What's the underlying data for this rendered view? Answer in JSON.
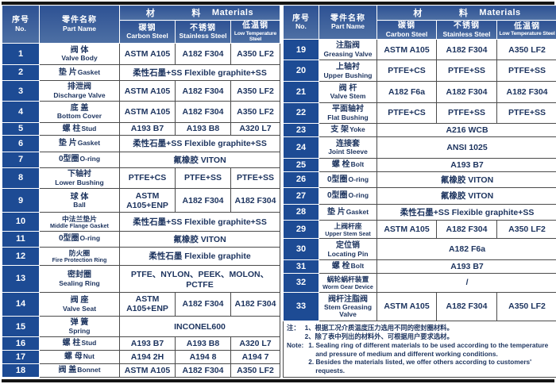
{
  "colors": {
    "header_blue_top": "#2e5294",
    "header_blue_bottom": "#4e70a4",
    "number_cell_blue": "#1d4b94",
    "body_text_navy": "#1c335e",
    "grid_line": "#4a4a4a",
    "frame_black": "#141414"
  },
  "header": {
    "no_zh": "序号",
    "no_en": "No.",
    "part_zh": "零件名称",
    "part_en": "Part Name",
    "materials_zh_1": "材",
    "materials_zh_2": "料",
    "materials_en": "Materials",
    "material_columns": [
      {
        "zh": "碳钢",
        "en": "Carbon Steel"
      },
      {
        "zh": "不锈钢",
        "en": "Stainless Steel"
      },
      {
        "zh": "低温钢",
        "en": "Low Temperature Steel"
      }
    ]
  },
  "left_rows": [
    {
      "no": "1",
      "part_zh": "阀 体",
      "part_en": "Valve Body",
      "layout": "stacked",
      "cells": [
        "ASTM A105",
        "A182 F304",
        "A350 LF2"
      ]
    },
    {
      "no": "2",
      "part_zh": "垫 片",
      "part_en": "Gasket",
      "layout": "inline",
      "span": "柔性石墨+SS  Flexible graphite+SS"
    },
    {
      "no": "3",
      "part_zh": "排泄阀",
      "part_en": "Discharge Valve",
      "layout": "stacked",
      "cells": [
        "ASTM A105",
        "A182 F304",
        "A350 LF2"
      ]
    },
    {
      "no": "4",
      "part_zh": "底 盖",
      "part_en": "Bottom Cover",
      "layout": "stacked",
      "cells": [
        "ASTM A105",
        "A182 F304",
        "A350 LF2"
      ]
    },
    {
      "no": "5",
      "part_zh": "螺 柱",
      "part_en": "Stud",
      "layout": "inline",
      "cells": [
        "A193 B7",
        "A193 B8",
        "A320 L7"
      ]
    },
    {
      "no": "6",
      "part_zh": "垫 片",
      "part_en": "Gasket",
      "layout": "inline",
      "span": "柔性石墨+SS  Flexible graphite+SS"
    },
    {
      "no": "7",
      "part_zh": "0型圈",
      "part_en": "O-ring",
      "layout": "inline",
      "span": "氟橡胶  VITON"
    },
    {
      "no": "8",
      "part_zh": "下轴衬",
      "part_en": "Lower Bushing",
      "layout": "stacked",
      "cells": [
        "PTFE+CS",
        "PTFE+SS",
        "PTFE+SS"
      ]
    },
    {
      "no": "9",
      "part_zh": "球 体",
      "part_en": "Ball",
      "layout": "stacked",
      "cells": [
        "ASTM A105+ENP",
        "A182 F304",
        "A182 F304"
      ]
    },
    {
      "no": "10",
      "part_zh": "中法兰垫片",
      "part_en": "Middle Flange Gasket",
      "layout": "stacked-small",
      "span": "柔性石墨+SS  Flexible graphite+SS"
    },
    {
      "no": "11",
      "part_zh": "0型圈",
      "part_en": "O-ring",
      "layout": "inline",
      "span": "氟橡胶  VITON"
    },
    {
      "no": "12",
      "part_zh": "防火圈",
      "part_en": "Fire Protection Ring",
      "layout": "stacked-small",
      "span": "柔性石墨  Flexible graphite"
    },
    {
      "no": "13",
      "part_zh": "密封圈",
      "part_en": "Sealing Ring",
      "layout": "stacked",
      "span": "PTFE、NYLON、PEEK、MOLON、PCTFE"
    },
    {
      "no": "14",
      "part_zh": "阀 座",
      "part_en": "Valve Seat",
      "layout": "stacked",
      "cells": [
        "ASTM A105+ENP",
        "A182 F304",
        "A182 F304"
      ]
    },
    {
      "no": "15",
      "part_zh": "弹 簧",
      "part_en": "Spring",
      "layout": "stacked",
      "span": "INCONEL600"
    },
    {
      "no": "16",
      "part_zh": "螺 柱",
      "part_en": "Stud",
      "layout": "inline",
      "cells": [
        "A193 B7",
        "A193 B8",
        "A320 L7"
      ]
    },
    {
      "no": "17",
      "part_zh": "螺 母",
      "part_en": "Nut",
      "layout": "inline",
      "cells": [
        "A194 2H",
        "A194 8",
        "A194 7"
      ]
    },
    {
      "no": "18",
      "part_zh": "阀 盖",
      "part_en": "Bonnet",
      "layout": "inline",
      "cells": [
        "ASTM A105",
        "A182 F304",
        "A350 LF2"
      ]
    }
  ],
  "right_rows": [
    {
      "no": "19",
      "part_zh": "注脂阀",
      "part_en": "Greasing Valve",
      "layout": "stacked",
      "cells": [
        "ASTM A105",
        "A182 F304",
        "A350 LF2"
      ]
    },
    {
      "no": "20",
      "part_zh": "上轴衬",
      "part_en": "Upper Bushing",
      "layout": "stacked",
      "cells": [
        "PTFE+CS",
        "PTFE+SS",
        "PTFE+SS"
      ]
    },
    {
      "no": "21",
      "part_zh": "阀 杆",
      "part_en": "Valve Stem",
      "layout": "stacked",
      "cells": [
        "A182 F6a",
        "A182 F304",
        "A182 F304"
      ]
    },
    {
      "no": "22",
      "part_zh": "平面轴衬",
      "part_en": "Flat Bushing",
      "layout": "stacked",
      "cells": [
        "PTFE+CS",
        "PTFE+SS",
        "PTFE+SS"
      ]
    },
    {
      "no": "23",
      "part_zh": "支 架",
      "part_en": "Yoke",
      "layout": "inline",
      "span": "A216 WCB"
    },
    {
      "no": "24",
      "part_zh": "连接套",
      "part_en": "Joint Sleeve",
      "layout": "stacked",
      "span": "ANSI 1025"
    },
    {
      "no": "25",
      "part_zh": "螺 栓",
      "part_en": "Bolt",
      "layout": "inline",
      "span": "A193 B7"
    },
    {
      "no": "26",
      "part_zh": "0型圈",
      "part_en": "O-ring",
      "layout": "inline",
      "span": "氟橡胶  VITON"
    },
    {
      "no": "27",
      "part_zh": "0型圈",
      "part_en": "O-ring",
      "layout": "inline",
      "span": "氟橡胶  VITON"
    },
    {
      "no": "28",
      "part_zh": "垫 片",
      "part_en": "Gasket",
      "layout": "inline",
      "span": "柔性石墨+SS  Flexible graphite+SS"
    },
    {
      "no": "29",
      "part_zh": "上阀杆座",
      "part_en": "Upper Stem Seat",
      "layout": "stacked-small",
      "cells": [
        "ASTM A105",
        "A182 F304",
        "A350 LF2"
      ]
    },
    {
      "no": "30",
      "part_zh": "定位销",
      "part_en": "Locating Pin",
      "layout": "stacked",
      "span": "A182 F6a"
    },
    {
      "no": "31",
      "part_zh": "螺 栓",
      "part_en": "Bolt",
      "layout": "inline",
      "span": "A193 B7"
    },
    {
      "no": "32",
      "part_zh": "蜗轮蜗杆装置",
      "part_en": "Worm Gear Device",
      "layout": "stacked-small",
      "span": "/"
    },
    {
      "no": "33",
      "part_zh": "阀杆注脂阀",
      "part_en": "Stem Greasing Valve",
      "layout": "stacked",
      "cells": [
        "ASTM A105",
        "A182 F304",
        "A350 LF2"
      ]
    }
  ],
  "notes": {
    "zh_label": "注：",
    "zh_lines": [
      "1、根据工况介质温度压力选用不同的密封圈材料。",
      "2、除了表中列出的材料外、可根据用户要求选材。"
    ],
    "en_label": "Note:",
    "en_lines": [
      "1. Sealing ring of different materials to be used according to the  temperature and pressure of medium and different working conditions.",
      "2. Besides the materials listed, we offer others according to customers' requests."
    ]
  }
}
